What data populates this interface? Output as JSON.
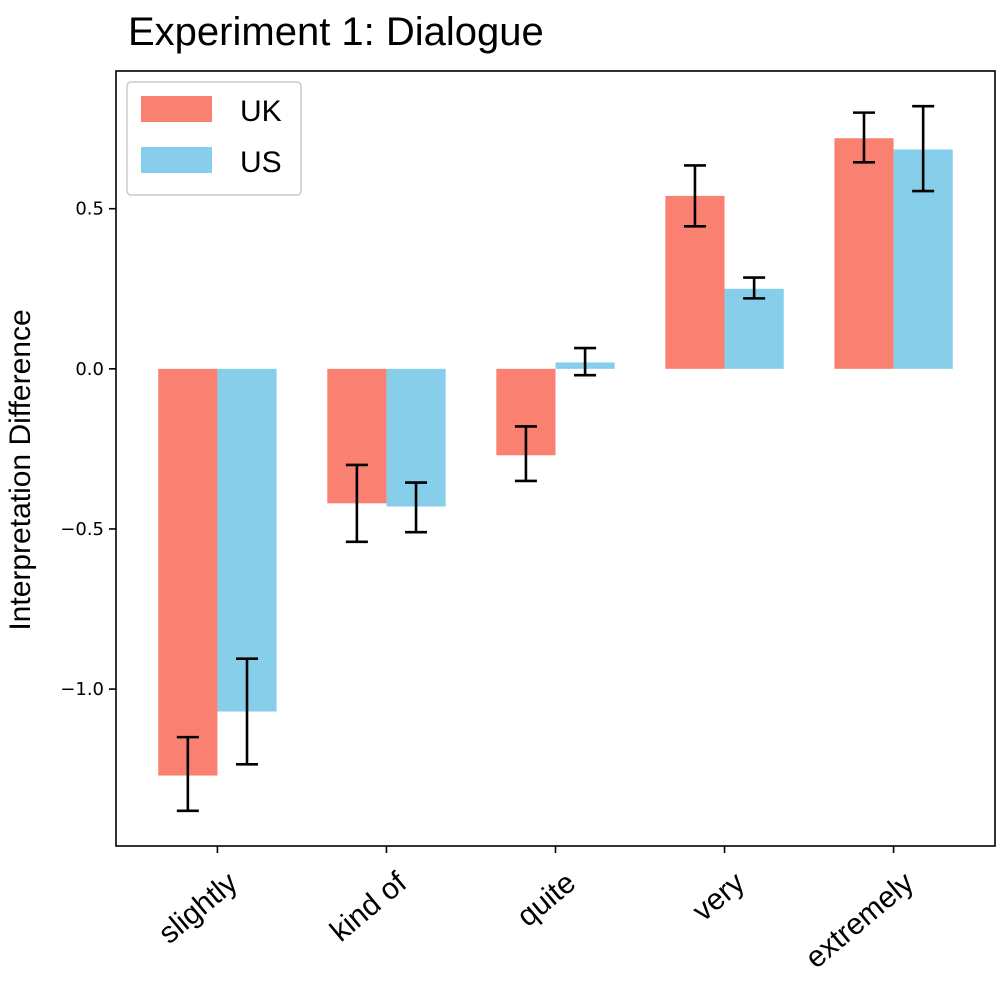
{
  "chart_data": {
    "type": "bar",
    "title": "Experiment 1: Dialogue",
    "xlabel": "",
    "ylabel": "Interpretation Difference",
    "categories": [
      "slightly",
      "kind of",
      "quite",
      "very",
      "extremely"
    ],
    "series": [
      {
        "name": "UK",
        "color": "#FA8072",
        "values": [
          -1.27,
          -0.42,
          -0.27,
          0.54,
          0.72
        ],
        "error_low": [
          -1.38,
          -0.54,
          -0.35,
          0.445,
          0.645
        ],
        "error_high": [
          -1.15,
          -0.3,
          -0.18,
          0.635,
          0.8
        ]
      },
      {
        "name": "US",
        "color": "#87CEEB",
        "values": [
          -1.07,
          -0.43,
          0.02,
          0.25,
          0.685
        ],
        "error_low": [
          -1.235,
          -0.51,
          -0.02,
          0.22,
          0.555
        ],
        "error_high": [
          -0.905,
          -0.355,
          0.065,
          0.285,
          0.82
        ]
      }
    ],
    "yticks": [
      -1.0,
      -0.5,
      0.0,
      0.5
    ],
    "ytick_labels": [
      "−1.0",
      "−0.5",
      "0.0",
      "0.5"
    ],
    "ylim": [
      -1.49,
      0.93
    ],
    "grid": false,
    "legend": "top-left"
  }
}
